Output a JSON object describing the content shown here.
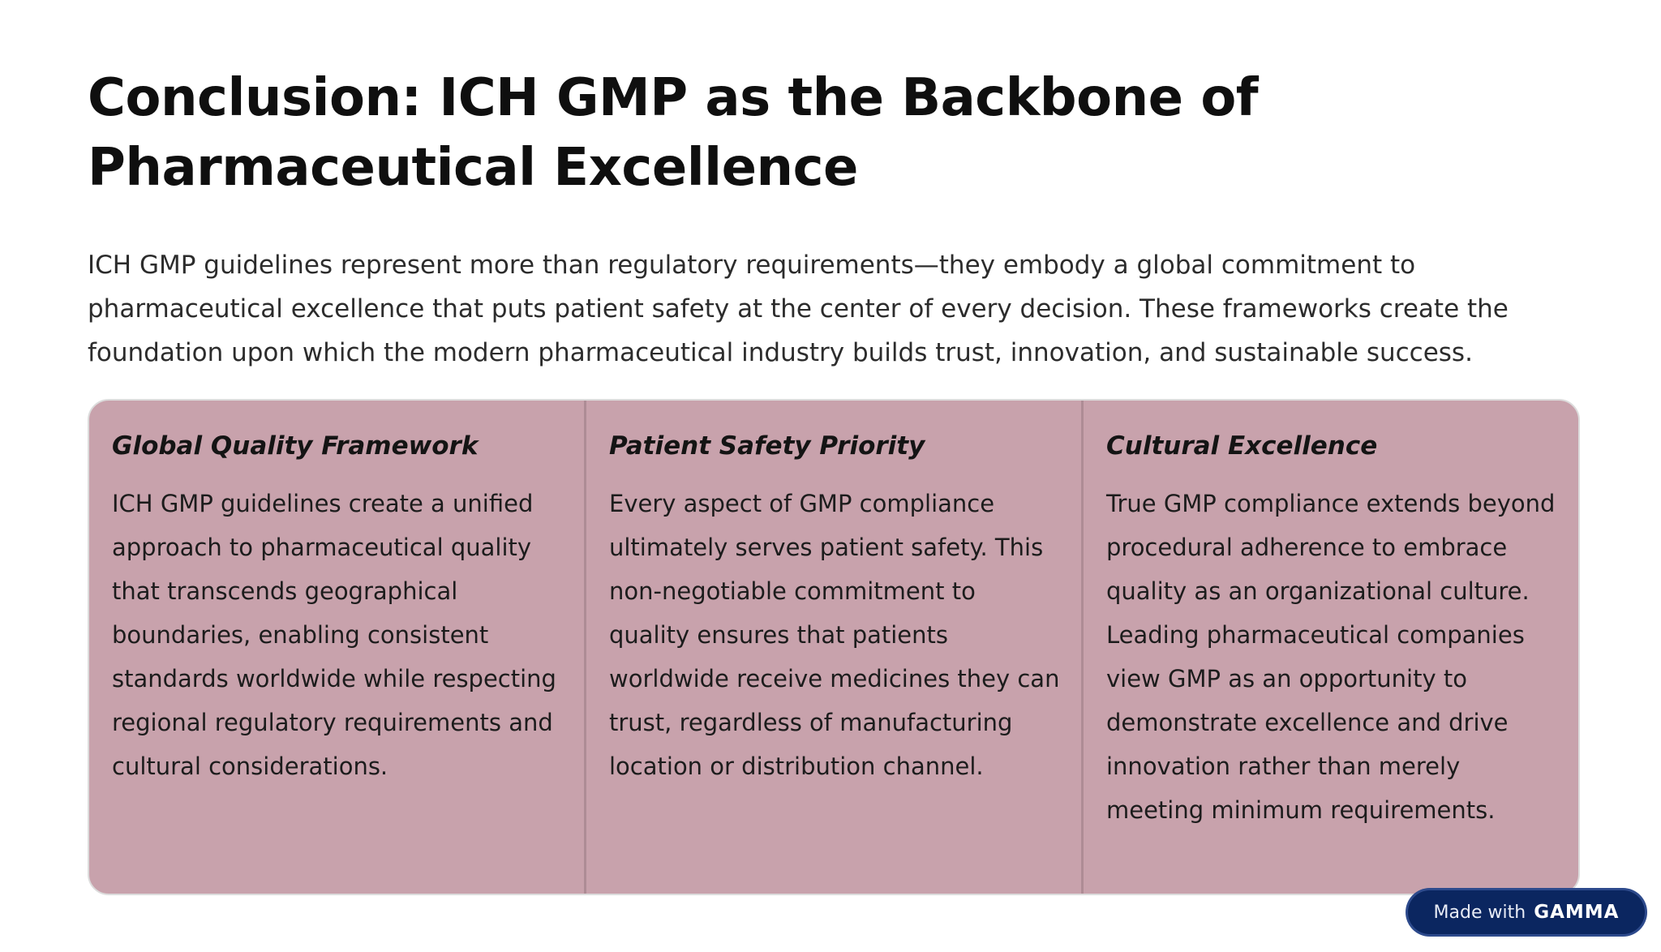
{
  "title": "Conclusion: ICH GMP as the Backbone of Pharmaceutical Excellence",
  "intro": "ICH GMP guidelines represent more than regulatory requirements—they embody a global commitment to pharmaceutical excellence that puts patient safety at the center of every decision. These frameworks create the foundation upon which the modern pharmaceutical industry builds trust, innovation, and sustainable success.",
  "columns": [
    {
      "heading": "Global Quality Framework",
      "body": "ICH GMP guidelines create a unified approach to pharmaceutical quality that transcends geographical boundaries, enabling consistent standards worldwide while respecting regional regulatory requirements and cultural considerations."
    },
    {
      "heading": "Patient Safety Priority",
      "body": "Every aspect of GMP compliance ultimately serves patient safety. This non-negotiable commitment to quality ensures that patients worldwide receive medicines they can trust, regardless of manufacturing location or distribution channel."
    },
    {
      "heading": "Cultural Excellence",
      "body": "True GMP compliance extends beyond procedural adherence to embrace quality as an organizational culture. Leading pharmaceutical companies view GMP as an opportunity to demonstrate excellence and drive innovation rather than merely meeting minimum requirements."
    }
  ],
  "badge": {
    "made_with": "Made with",
    "brand": "GAMMA"
  },
  "colors": {
    "panel_bg": "#c8a2ac",
    "badge_bg": "#0b2660"
  }
}
